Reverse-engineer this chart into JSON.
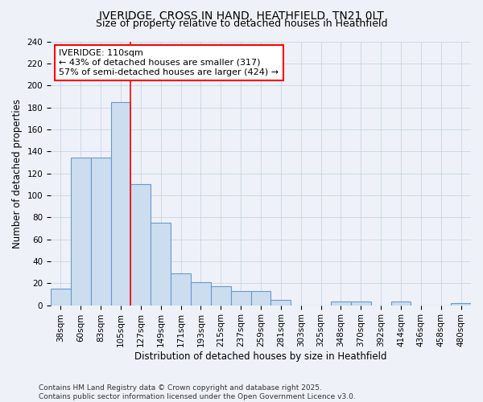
{
  "title_line1": "IVERIDGE, CROSS IN HAND, HEATHFIELD, TN21 0LT",
  "title_line2": "Size of property relative to detached houses in Heathfield",
  "xlabel": "Distribution of detached houses by size in Heathfield",
  "ylabel": "Number of detached properties",
  "categories": [
    "38sqm",
    "60sqm",
    "83sqm",
    "105sqm",
    "127sqm",
    "149sqm",
    "171sqm",
    "193sqm",
    "215sqm",
    "237sqm",
    "259sqm",
    "281sqm",
    "303sqm",
    "325sqm",
    "348sqm",
    "370sqm",
    "392sqm",
    "414sqm",
    "436sqm",
    "458sqm",
    "480sqm"
  ],
  "values": [
    15,
    134,
    134,
    185,
    110,
    75,
    29,
    21,
    17,
    13,
    13,
    5,
    0,
    0,
    3,
    3,
    0,
    3,
    0,
    0,
    2
  ],
  "bar_color": "#ccddf0",
  "bar_edge_color": "#6699cc",
  "grid_color": "#c8d4e8",
  "background_color": "#eef2f8",
  "vline_color": "red",
  "vline_position": 3.5,
  "annotation_title": "IVERIDGE: 110sqm",
  "annotation_line2": "← 43% of detached houses are smaller (317)",
  "annotation_line3": "57% of semi-detached houses are larger (424) →",
  "annotation_box_color": "white",
  "annotation_box_edge": "red",
  "ylim": [
    0,
    240
  ],
  "yticks": [
    0,
    20,
    40,
    60,
    80,
    100,
    120,
    140,
    160,
    180,
    200,
    220,
    240
  ],
  "footer_line1": "Contains HM Land Registry data © Crown copyright and database right 2025.",
  "footer_line2": "Contains public sector information licensed under the Open Government Licence v3.0.",
  "title_fontsize": 10,
  "subtitle_fontsize": 9,
  "axis_label_fontsize": 8.5,
  "tick_fontsize": 7.5,
  "annotation_fontsize": 8,
  "footer_fontsize": 6.5
}
